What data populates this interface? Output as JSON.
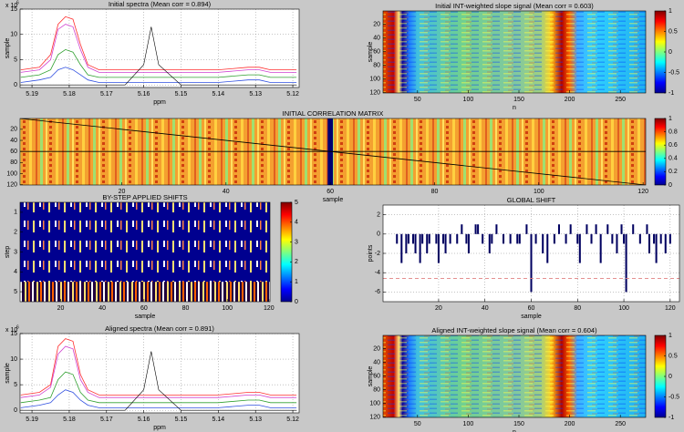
{
  "chart_data": [
    {
      "type": "line",
      "title": "Initial spectra (Mean corr = 0.894)",
      "x_label": "ppm",
      "y_label": "sample",
      "y_multiplier": {
        "base": "x 10",
        "power": "6"
      },
      "x": [
        5.193,
        5.188,
        5.185,
        5.183,
        5.181,
        5.179,
        5.177,
        5.175,
        5.172,
        5.165,
        5.16,
        5.158,
        5.156,
        5.15,
        5.14,
        5.132,
        5.129,
        5.126,
        5.119
      ],
      "xlim": [
        5.1183,
        5.1932
      ],
      "x_direction": "reverse",
      "xticks": [
        5.19,
        5.18,
        5.17,
        5.16,
        5.15,
        5.14,
        5.13,
        5.12
      ],
      "ylim": [
        -0.5,
        15
      ],
      "yticks": [
        0,
        5,
        10,
        15
      ],
      "grid": true,
      "series": [
        {
          "color": "#ff3030",
          "values": [
            3,
            3.5,
            6,
            12,
            13.5,
            13,
            8,
            4,
            3,
            3,
            3,
            3,
            3,
            3,
            3,
            3.5,
            3.5,
            3,
            3
          ]
        },
        {
          "color": "#d040d0",
          "values": [
            2.5,
            3,
            5,
            11,
            12,
            11.5,
            7,
            3.5,
            2.5,
            2.5,
            2.5,
            2.5,
            2.5,
            2.5,
            2.5,
            3,
            3,
            2.5,
            2.5
          ]
        },
        {
          "color": "#30a030",
          "values": [
            1.5,
            2,
            3,
            6,
            7,
            6.5,
            4,
            2,
            1.5,
            1.5,
            1.5,
            1.5,
            1.5,
            1.5,
            1.5,
            2,
            2,
            1.5,
            1.5
          ]
        },
        {
          "color": "#3050e0",
          "values": [
            0.5,
            1,
            1.5,
            3,
            3.5,
            3,
            2,
            1,
            0.5,
            0.5,
            0.5,
            0.5,
            0.5,
            0.5,
            0.5,
            1,
            1,
            0.5,
            0.5
          ]
        },
        {
          "color": "#000000",
          "values": [
            0,
            0,
            0,
            0,
            0,
            0,
            0,
            0,
            0,
            0,
            4,
            11.5,
            4,
            0,
            0,
            0,
            0,
            0,
            0
          ]
        }
      ]
    },
    {
      "type": "heatmap",
      "title": "Initial INT-weighted slope signal (Mean corr = 0.603)",
      "x_label": "n",
      "y_label": "sample",
      "xlim": [
        16,
        275
      ],
      "xticks": [
        50,
        100,
        150,
        200,
        250
      ],
      "ylim": [
        0.5,
        120.5
      ],
      "y_direction": "reverse",
      "yticks": [
        20,
        40,
        60,
        80,
        100,
        120
      ],
      "clim": [
        -1,
        1
      ],
      "colorbar_ticks": [
        -1,
        -0.5,
        0,
        0.5,
        1
      ],
      "colormap": "jet"
    },
    {
      "type": "heatmap",
      "title": "INITIAL CORRELATION MATRIX",
      "x_label": "sample",
      "xlim": [
        0.5,
        120.5
      ],
      "xticks": [
        20,
        40,
        60,
        80,
        100,
        120
      ],
      "ylim": [
        0.5,
        120.5
      ],
      "y_direction": "reverse",
      "yticks": [
        20,
        40,
        60,
        80,
        100,
        120
      ],
      "clim": [
        0,
        1
      ],
      "colorbar_ticks": [
        0,
        0.2,
        0.4,
        0.6,
        0.8,
        1
      ],
      "colormap": "jet"
    },
    {
      "type": "heatmap",
      "title": "BY-STEP APPLIED SHIFTS",
      "x_label": "sample",
      "y_label": "step",
      "xlim": [
        0.5,
        120.5
      ],
      "xticks": [
        20,
        40,
        60,
        80,
        100,
        120
      ],
      "ylim": [
        0.5,
        5.5
      ],
      "y_direction": "reverse",
      "yticks": [
        1,
        2,
        3,
        4,
        5
      ],
      "clim": [
        0,
        5
      ],
      "colorbar_ticks": [
        0,
        1,
        2,
        3,
        4,
        5
      ],
      "colormap": "jet"
    },
    {
      "type": "bar",
      "title": "GLOBAL SHIFT",
      "x_label": "sample",
      "y_label": "points",
      "color": "#000060",
      "xlim": [
        -4,
        124
      ],
      "xticks": [
        20,
        40,
        60,
        80,
        100,
        120
      ],
      "ylim": [
        -7,
        3
      ],
      "yticks": [
        -6,
        -4,
        -2,
        0,
        2
      ],
      "grid": true,
      "reference_line": {
        "value": -4.6,
        "color": "#e08080"
      },
      "x": [
        1,
        2,
        3,
        4,
        5,
        6,
        7,
        8,
        9,
        10,
        11,
        12,
        13,
        14,
        15,
        16,
        17,
        18,
        19,
        20,
        21,
        22,
        23,
        24,
        25,
        26,
        27,
        28,
        29,
        30,
        31,
        32,
        33,
        34,
        35,
        36,
        37,
        38,
        39,
        40,
        41,
        42,
        43,
        44,
        45,
        46,
        47,
        48,
        49,
        50,
        51,
        52,
        53,
        54,
        55,
        56,
        57,
        58,
        59,
        60,
        61,
        62,
        63,
        64,
        65,
        66,
        67,
        68,
        69,
        70,
        71,
        72,
        73,
        74,
        75,
        76,
        77,
        78,
        79,
        80,
        81,
        82,
        83,
        84,
        85,
        86,
        87,
        88,
        89,
        90,
        91,
        92,
        93,
        94,
        95,
        96,
        97,
        98,
        99,
        100,
        101,
        102,
        103,
        104,
        105,
        106,
        107,
        108,
        109,
        110,
        111,
        112,
        113,
        114,
        115,
        116,
        117,
        118,
        119,
        120
      ],
      "values": [
        0,
        -1,
        0,
        -3,
        0,
        -2,
        -1,
        0,
        -1,
        -2,
        0,
        -3,
        -1,
        0,
        -2,
        -1,
        0,
        0,
        -1,
        -3,
        0,
        -1,
        -2,
        0,
        -1,
        0,
        0,
        -1,
        0,
        1,
        0,
        -1,
        -2,
        0,
        0,
        1,
        1,
        0,
        -1,
        0,
        0,
        -2,
        -1,
        0,
        1,
        0,
        0,
        -1,
        0,
        0,
        -1,
        0,
        0,
        -1,
        -1,
        0,
        0,
        1,
        0,
        -6,
        0,
        -1,
        0,
        0,
        -2,
        0,
        -3,
        0,
        0,
        -1,
        0,
        1,
        0,
        0,
        -1,
        0,
        1,
        0,
        0,
        -1,
        -3,
        0,
        0,
        1,
        0,
        -1,
        0,
        1,
        0,
        -3,
        0,
        0,
        1,
        0,
        -1,
        0,
        -2,
        0,
        1,
        -1,
        -6,
        0,
        0,
        1,
        0,
        0,
        -1,
        0,
        0,
        1,
        -2,
        0,
        -1,
        -3,
        0,
        -1,
        0,
        -2,
        0,
        -1
      ]
    },
    {
      "type": "line",
      "title": "Aligned spectra (Mean corr = 0.891)",
      "x_label": "ppm",
      "y_label": "sample",
      "y_multiplier": {
        "base": "x 10",
        "power": "6"
      },
      "x": [
        5.193,
        5.188,
        5.185,
        5.183,
        5.181,
        5.179,
        5.177,
        5.175,
        5.172,
        5.165,
        5.16,
        5.158,
        5.156,
        5.15,
        5.14,
        5.132,
        5.129,
        5.126,
        5.119
      ],
      "xlim": [
        5.1183,
        5.1932
      ],
      "x_direction": "reverse",
      "xticks": [
        5.19,
        5.18,
        5.17,
        5.16,
        5.15,
        5.14,
        5.13,
        5.12
      ],
      "ylim": [
        -0.5,
        15
      ],
      "yticks": [
        0,
        5,
        10,
        15
      ],
      "grid": true,
      "series": [
        {
          "color": "#ff3030",
          "values": [
            3,
            3.5,
            5,
            12.5,
            14,
            13.5,
            7,
            4,
            3,
            3,
            3,
            3,
            3,
            3,
            3,
            3.5,
            3.5,
            3,
            3
          ]
        },
        {
          "color": "#d040d0",
          "values": [
            2.5,
            3,
            4.5,
            11,
            12.5,
            12,
            6,
            3.5,
            2.5,
            2.5,
            2.5,
            2.5,
            2.5,
            2.5,
            2.5,
            3,
            3,
            2.5,
            2.5
          ]
        },
        {
          "color": "#30a030",
          "values": [
            1.5,
            2,
            2.5,
            6,
            7.5,
            7,
            3.5,
            2,
            1.5,
            1.5,
            1.5,
            1.5,
            1.5,
            1.5,
            1.5,
            2,
            2,
            1.5,
            1.5
          ]
        },
        {
          "color": "#3050e0",
          "values": [
            0.5,
            1,
            1.5,
            3,
            4,
            3.5,
            2,
            1,
            0.5,
            0.5,
            0.5,
            0.5,
            0.5,
            0.5,
            0.5,
            1,
            1,
            0.5,
            0.5
          ]
        },
        {
          "color": "#000000",
          "values": [
            0,
            0,
            0,
            0,
            0,
            0,
            0,
            0,
            0,
            0,
            4,
            11.5,
            4,
            0,
            0,
            0,
            0,
            0,
            0
          ]
        }
      ]
    },
    {
      "type": "heatmap",
      "title": "Aligned INT-weighted slope signal (Mean corr = 0.604)",
      "x_label": "n",
      "y_label": "sample",
      "xlim": [
        16,
        275
      ],
      "xticks": [
        50,
        100,
        150,
        200,
        250
      ],
      "ylim": [
        0.5,
        120.5
      ],
      "y_direction": "reverse",
      "yticks": [
        20,
        40,
        60,
        80,
        100,
        120
      ],
      "clim": [
        -1,
        1
      ],
      "colorbar_ticks": [
        -1,
        -0.5,
        0,
        0.5,
        1
      ],
      "colormap": "jet"
    }
  ]
}
